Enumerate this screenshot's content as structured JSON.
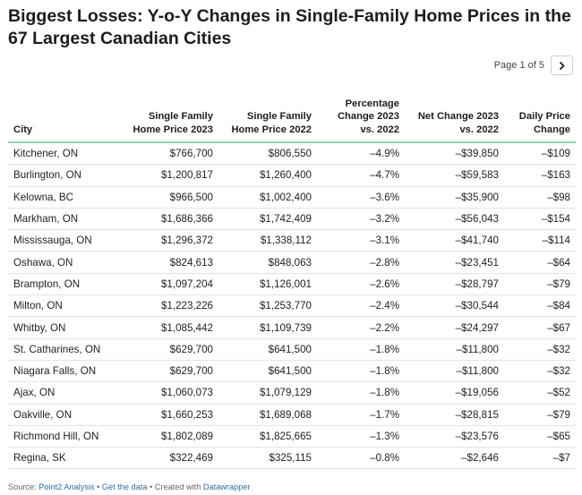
{
  "title": "Biggest Losses: Y-o-Y Changes in Single-Family Home Prices in the 67 Largest Canadian Cities",
  "pager": {
    "label": "Page 1 of 5",
    "next_icon": "chevron-right-icon"
  },
  "chart_data": {
    "type": "table",
    "columns": [
      "City",
      "Single Family Home Price 2023",
      "Single Family Home Price 2022",
      "Percentage Change 2023 vs. 2022",
      "Net Change 2023 vs. 2022",
      "Daily Price Change"
    ],
    "rows": [
      [
        "Kitchener, ON",
        "$766,700",
        "$806,550",
        "–4.9%",
        "–$39,850",
        "–$109"
      ],
      [
        "Burlington, ON",
        "$1,200,817",
        "$1,260,400",
        "–4.7%",
        "–$59,583",
        "–$163"
      ],
      [
        "Kelowna, BC",
        "$966,500",
        "$1,002,400",
        "–3.6%",
        "–$35,900",
        "–$98"
      ],
      [
        "Markham, ON",
        "$1,686,366",
        "$1,742,409",
        "–3.2%",
        "–$56,043",
        "–$154"
      ],
      [
        "Mississauga, ON",
        "$1,296,372",
        "$1,338,112",
        "–3.1%",
        "–$41,740",
        "–$114"
      ],
      [
        "Oshawa, ON",
        "$824,613",
        "$848,063",
        "–2.8%",
        "–$23,451",
        "–$64"
      ],
      [
        "Brampton, ON",
        "$1,097,204",
        "$1,126,001",
        "–2.6%",
        "–$28,797",
        "–$79"
      ],
      [
        "Milton, ON",
        "$1,223,226",
        "$1,253,770",
        "–2.4%",
        "–$30,544",
        "–$84"
      ],
      [
        "Whitby, ON",
        "$1,085,442",
        "$1,109,739",
        "–2.2%",
        "–$24,297",
        "–$67"
      ],
      [
        "St. Catharines, ON",
        "$629,700",
        "$641,500",
        "–1.8%",
        "–$11,800",
        "–$32"
      ],
      [
        "Niagara Falls, ON",
        "$629,700",
        "$641,500",
        "–1.8%",
        "–$11,800",
        "–$32"
      ],
      [
        "Ajax, ON",
        "$1,060,073",
        "$1,079,129",
        "–1.8%",
        "–$19,056",
        "–$52"
      ],
      [
        "Oakville, ON",
        "$1,660,253",
        "$1,689,068",
        "–1.7%",
        "–$28,815",
        "–$79"
      ],
      [
        "Richmond Hill, ON",
        "$1,802,089",
        "$1,825,665",
        "–1.3%",
        "–$23,576",
        "–$65"
      ],
      [
        "Regina, SK",
        "$322,469",
        "$325,115",
        "–0.8%",
        "–$2,646",
        "–$7"
      ]
    ]
  },
  "footer": {
    "source_prefix": "Source: ",
    "source_link": "Point2 Analysis",
    "sep1": " • ",
    "data_link": "Get the data",
    "sep2": " • Created with ",
    "dw_link": "Datawrapper"
  },
  "colors": {
    "header_rule": "#8ed6b4",
    "link": "#2a6fb0"
  }
}
